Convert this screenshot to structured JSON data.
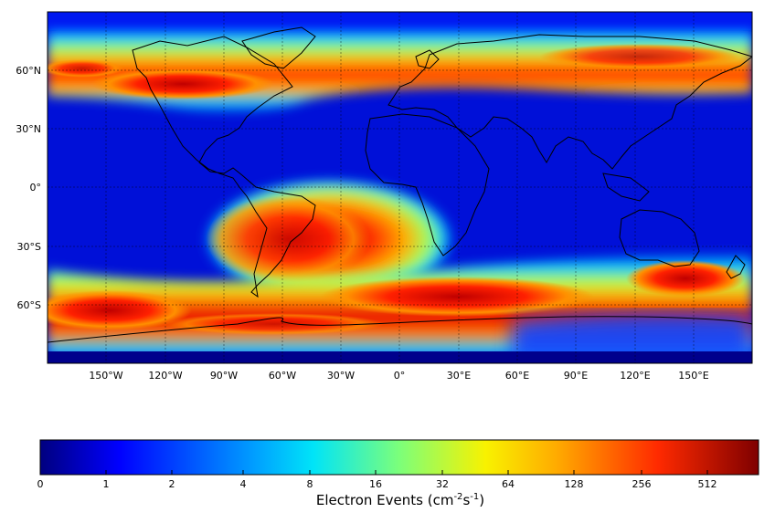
{
  "map": {
    "lat_ticks": [
      "60°N",
      "30°N",
      "0°",
      "30°S",
      "60°S"
    ],
    "lon_ticks": [
      "150°W",
      "120°W",
      "90°W",
      "60°W",
      "30°W",
      "0°",
      "30°E",
      "60°E",
      "90°E",
      "120°E",
      "150°E"
    ],
    "palette": "jet",
    "colors": {
      "background": "#00008c",
      "gridline": "#000000",
      "coast": "#000000"
    }
  },
  "colorbar": {
    "ticks": [
      "0",
      "1",
      "2",
      "4",
      "8",
      "16",
      "32",
      "64",
      "128",
      "256",
      "512"
    ],
    "label_main": "Electron Events (cm",
    "label_exp1": "-2",
    "label_mid": "s",
    "label_exp2": "-1",
    "label_end": ")"
  }
}
